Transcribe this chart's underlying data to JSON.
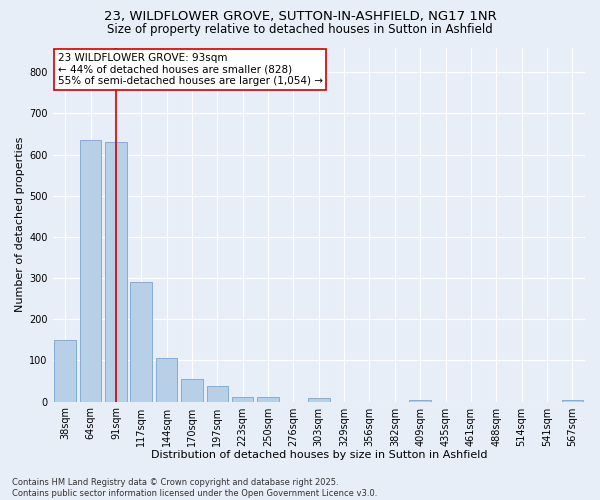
{
  "title_line1": "23, WILDFLOWER GROVE, SUTTON-IN-ASHFIELD, NG17 1NR",
  "title_line2": "Size of property relative to detached houses in Sutton in Ashfield",
  "xlabel": "Distribution of detached houses by size in Sutton in Ashfield",
  "ylabel": "Number of detached properties",
  "categories": [
    "38sqm",
    "64sqm",
    "91sqm",
    "117sqm",
    "144sqm",
    "170sqm",
    "197sqm",
    "223sqm",
    "250sqm",
    "276sqm",
    "303sqm",
    "329sqm",
    "356sqm",
    "382sqm",
    "409sqm",
    "435sqm",
    "461sqm",
    "488sqm",
    "514sqm",
    "541sqm",
    "567sqm"
  ],
  "values": [
    150,
    635,
    630,
    290,
    105,
    55,
    38,
    12,
    12,
    0,
    8,
    0,
    0,
    0,
    5,
    0,
    0,
    0,
    0,
    0,
    5
  ],
  "bar_color": "#b8cfe8",
  "bar_edge_color": "#6699cc",
  "vline_x": 2,
  "vline_color": "#cc0000",
  "annotation_text": "23 WILDFLOWER GROVE: 93sqm\n← 44% of detached houses are smaller (828)\n55% of semi-detached houses are larger (1,054) →",
  "annotation_box_color": "#ffffff",
  "annotation_box_edge": "#cc0000",
  "ylim": [
    0,
    860
  ],
  "yticks": [
    0,
    100,
    200,
    300,
    400,
    500,
    600,
    700,
    800
  ],
  "background_color": "#e8eef8",
  "plot_background": "#e8eef8",
  "footer_line1": "Contains HM Land Registry data © Crown copyright and database right 2025.",
  "footer_line2": "Contains public sector information licensed under the Open Government Licence v3.0.",
  "title_fontsize": 9.5,
  "subtitle_fontsize": 8.5,
  "tick_fontsize": 7,
  "xlabel_fontsize": 8,
  "ylabel_fontsize": 8,
  "footer_fontsize": 6,
  "annot_fontsize": 7.5
}
